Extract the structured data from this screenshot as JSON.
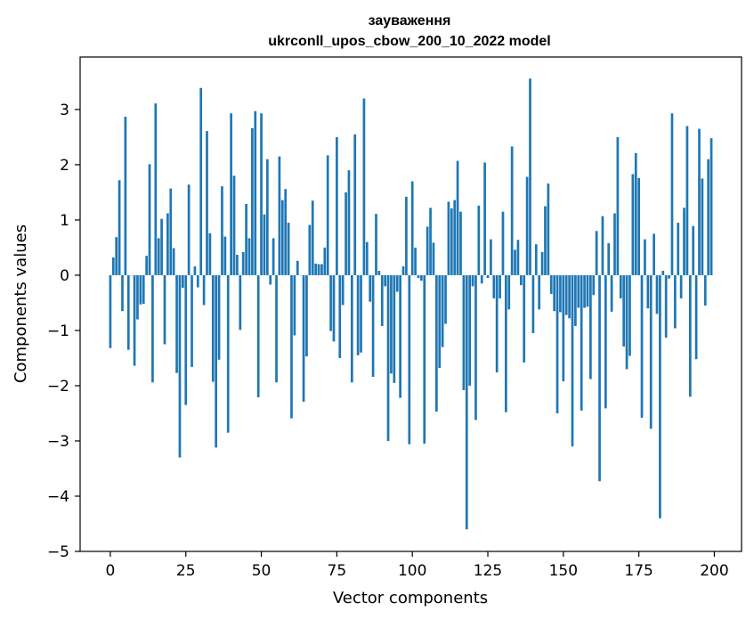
{
  "chart_data": {
    "type": "bar",
    "title_line1": "зауваження",
    "title_line2": "ukrconll_upos_cbow_200_10_2022 model",
    "xlabel": "Vector components",
    "ylabel": "Components values",
    "xlim": [
      -10,
      209
    ],
    "ylim": [
      -5.0,
      3.95
    ],
    "xticks": [
      0,
      25,
      50,
      75,
      100,
      125,
      150,
      175,
      200
    ],
    "xtick_labels": [
      "0",
      "25",
      "50",
      "75",
      "100",
      "125",
      "150",
      "175",
      "200"
    ],
    "yticks": [
      -5,
      -4,
      -3,
      -2,
      -1,
      0,
      1,
      2,
      3
    ],
    "ytick_labels": [
      "−5",
      "−4",
      "−3",
      "−2",
      "−1",
      "0",
      "1",
      "2",
      "3"
    ],
    "bar_color": "#1f77b4",
    "grid": false,
    "values": [
      -1.32,
      0.32,
      0.69,
      1.72,
      -0.65,
      2.87,
      -1.35,
      0.0,
      -1.64,
      -0.8,
      -0.53,
      -0.52,
      0.35,
      2.01,
      -1.94,
      3.11,
      0.67,
      1.02,
      -1.25,
      1.12,
      1.57,
      0.49,
      -1.77,
      -3.3,
      -0.23,
      -2.35,
      1.64,
      -1.66,
      0.16,
      -0.22,
      3.39,
      -0.54,
      2.61,
      0.76,
      -1.93,
      -3.12,
      -1.53,
      1.61,
      0.7,
      -2.85,
      2.93,
      1.8,
      0.37,
      -0.99,
      0.42,
      1.29,
      0.67,
      2.66,
      2.97,
      -2.21,
      2.93,
      1.1,
      2.1,
      -0.17,
      0.67,
      -1.94,
      2.15,
      1.36,
      1.56,
      0.95,
      -2.59,
      -1.09,
      0.26,
      0.0,
      -2.29,
      -1.47,
      0.91,
      1.35,
      0.21,
      0.2,
      0.2,
      0.5,
      2.17,
      -1.01,
      -1.2,
      2.5,
      -1.5,
      -0.54,
      1.5,
      1.9,
      -1.94,
      2.55,
      -1.45,
      -1.4,
      3.2,
      0.6,
      -0.48,
      -1.84,
      1.11,
      0.08,
      -0.92,
      -0.2,
      -3.0,
      -1.78,
      -1.95,
      -0.3,
      -2.22,
      0.16,
      1.42,
      -3.06,
      1.7,
      0.5,
      -0.05,
      -0.1,
      -3.05,
      0.88,
      1.22,
      0.59,
      -2.47,
      -1.68,
      -1.3,
      -0.88,
      1.33,
      1.21,
      1.36,
      2.07,
      1.15,
      -2.08,
      -4.6,
      -2.0,
      -0.2,
      -2.62,
      1.26,
      -0.15,
      2.04,
      -0.05,
      0.65,
      -0.42,
      -1.76,
      -0.42,
      1.15,
      -2.48,
      -0.62,
      2.33,
      0.46,
      0.64,
      -0.18,
      -1.58,
      1.78,
      3.56,
      -1.05,
      0.56,
      -0.62,
      0.42,
      1.25,
      1.66,
      -0.34,
      -0.65,
      -2.5,
      -0.67,
      -1.92,
      -0.72,
      -0.78,
      -3.1,
      -0.92,
      -0.59,
      -2.45,
      -0.59,
      -0.57,
      -1.88,
      -0.36,
      0.8,
      -3.73,
      1.07,
      -2.41,
      0.58,
      -0.66,
      1.12,
      2.5,
      -0.42,
      -1.29,
      -1.7,
      -1.46,
      1.83,
      2.21,
      1.76,
      -2.58,
      0.65,
      -0.6,
      -2.78,
      0.75,
      -0.7,
      -4.4,
      0.08,
      -1.13,
      -0.06,
      2.93,
      -0.96,
      0.95,
      -0.42,
      1.22,
      2.7,
      -2.2,
      0.89,
      -1.52,
      2.65,
      1.75,
      -0.55,
      2.1,
      2.48
    ]
  }
}
